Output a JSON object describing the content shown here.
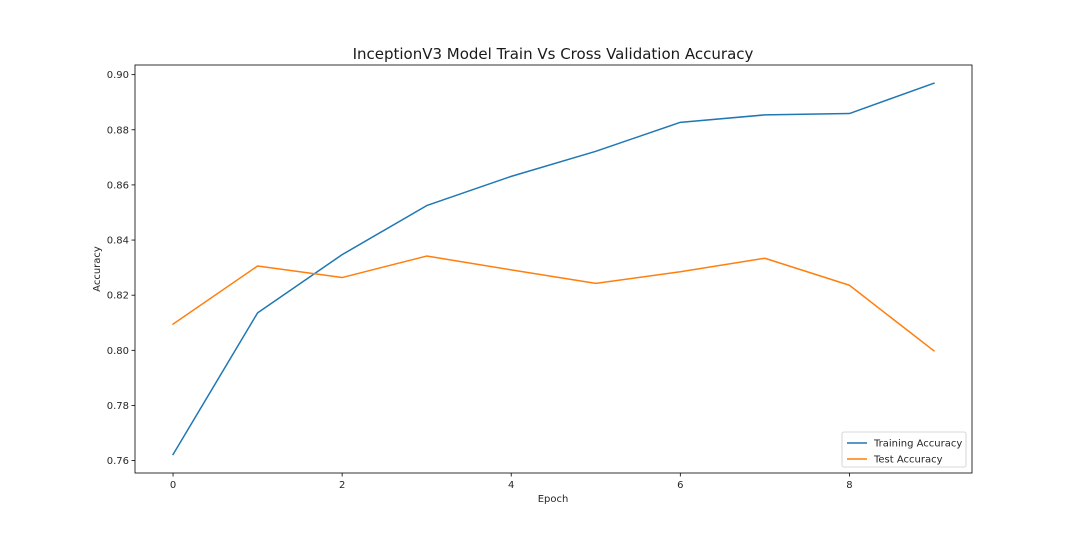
{
  "chart_data": {
    "type": "line",
    "title": "InceptionV3 Model Train Vs Cross Validation Accuracy",
    "xlabel": "Epoch",
    "ylabel": "Accuracy",
    "x": [
      0,
      1,
      2,
      3,
      4,
      5,
      6,
      7,
      8,
      9
    ],
    "xlim": [
      -0.45,
      9.45
    ],
    "ylim": [
      0.7555,
      0.9035
    ],
    "xticks": [
      0,
      2,
      4,
      6,
      8
    ],
    "xtick_labels": [
      "0",
      "2",
      "4",
      "6",
      "8"
    ],
    "yticks": [
      0.76,
      0.78,
      0.8,
      0.82,
      0.84,
      0.86,
      0.88,
      0.9
    ],
    "ytick_labels": [
      "0.76",
      "0.78",
      "0.80",
      "0.82",
      "0.84",
      "0.86",
      "0.88",
      "0.90"
    ],
    "grid": false,
    "legend_position": "lower-right",
    "series": [
      {
        "name": "Training Accuracy",
        "color": "#1f77b4",
        "values": [
          0.7622,
          0.8136,
          0.8347,
          0.8525,
          0.8631,
          0.8722,
          0.8827,
          0.8854,
          0.8859,
          0.8969
        ]
      },
      {
        "name": "Test Accuracy",
        "color": "#ff7f0e",
        "values": [
          0.8095,
          0.8306,
          0.8264,
          0.8342,
          0.8292,
          0.8243,
          0.8285,
          0.8334,
          0.8236,
          0.7998
        ]
      }
    ]
  }
}
